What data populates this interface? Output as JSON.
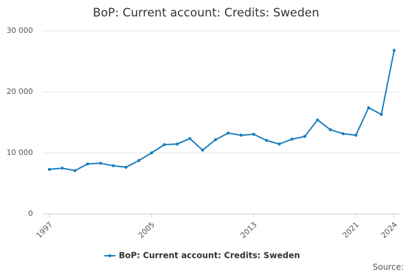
{
  "chart_data": {
    "type": "line",
    "title": "BoP: Current account: Credits: Sweden",
    "x": [
      1997,
      1998,
      1999,
      2000,
      2001,
      2002,
      2003,
      2004,
      2005,
      2006,
      2007,
      2008,
      2009,
      2010,
      2011,
      2012,
      2013,
      2014,
      2015,
      2016,
      2017,
      2018,
      2019,
      2020,
      2021,
      2022,
      2023,
      2024
    ],
    "series": [
      {
        "name": "BoP: Current account: Credits: Sweden",
        "color": "#1a7dbd",
        "values": [
          7300,
          7500,
          7100,
          8200,
          8300,
          7900,
          7650,
          8750,
          10000,
          11350,
          11450,
          12350,
          10450,
          12150,
          13250,
          12900,
          13050,
          12050,
          11450,
          12250,
          12700,
          15400,
          13800,
          13150,
          12900,
          17400,
          16300,
          26800
        ]
      }
    ],
    "xlim": [
      1997,
      2024
    ],
    "xticks": [
      1997,
      2005,
      2013,
      2021,
      2024
    ],
    "ylim": [
      0,
      30000
    ],
    "yticks": [
      0,
      {
        "value": 10000,
        "label": "10 000"
      },
      {
        "value": 20000,
        "label": "20 000"
      },
      {
        "value": 30000,
        "label": "30 000"
      }
    ],
    "grid": true,
    "legend": "bottom",
    "source": "Source:"
  }
}
